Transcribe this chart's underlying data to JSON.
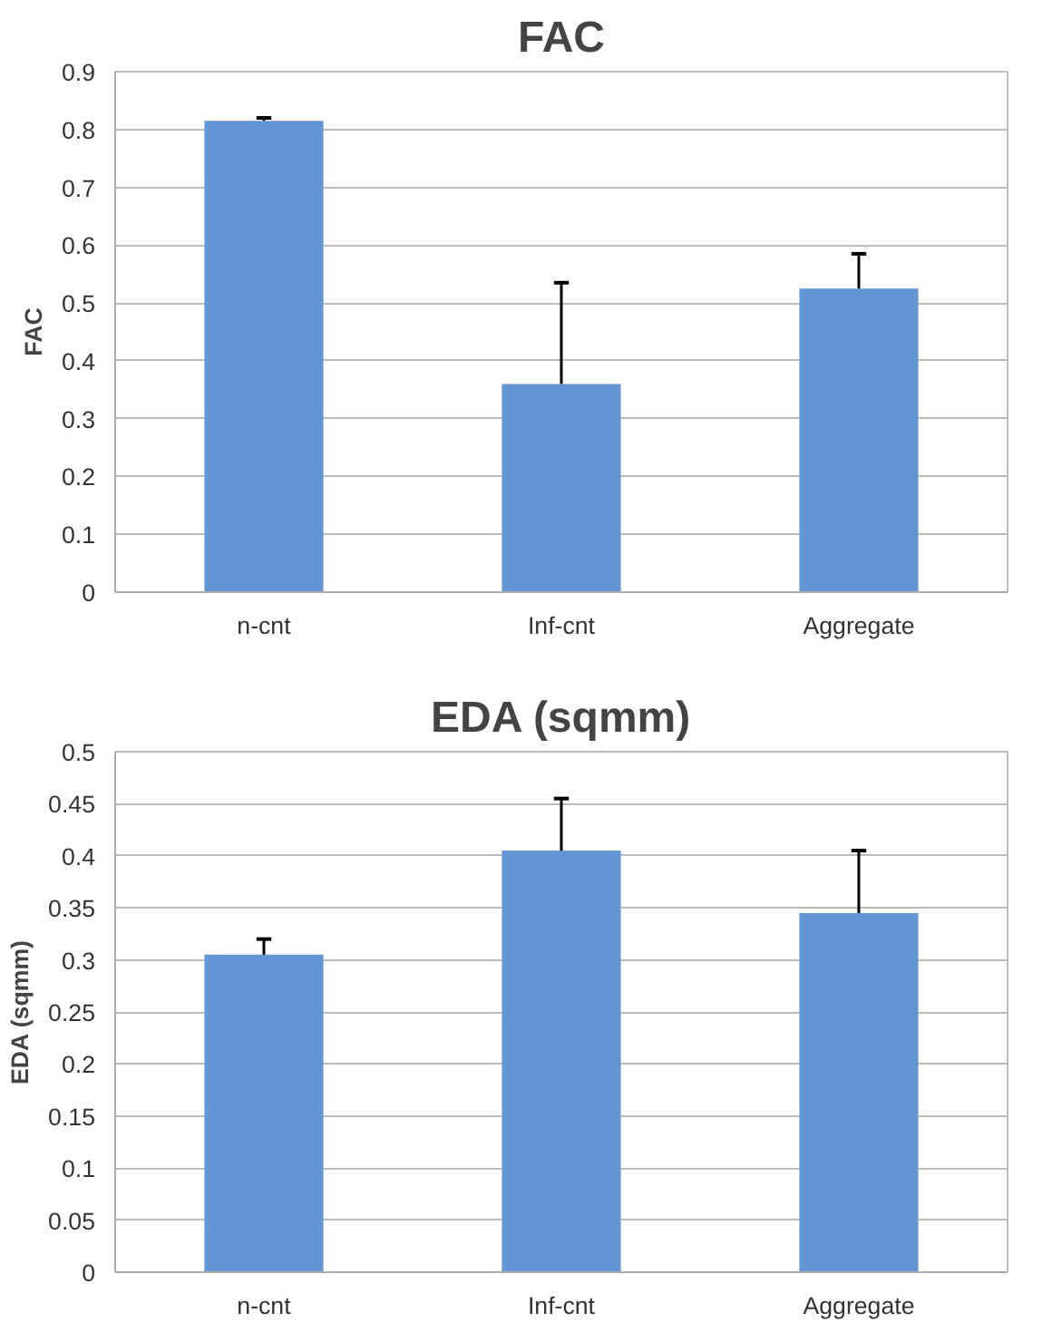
{
  "chart_data": [
    {
      "type": "bar",
      "title": "FAC",
      "ylabel": "FAC",
      "categories": [
        "n-cnt",
        "Inf-cnt",
        "Aggregate"
      ],
      "values": [
        0.815,
        0.36,
        0.525
      ],
      "errors": [
        [
          0.815,
          0.82
        ],
        [
          0.36,
          0.535
        ],
        [
          0.525,
          0.585
        ]
      ],
      "color": "#6395d3",
      "ylim": [
        0,
        0.9
      ],
      "yticks": [
        0,
        0.1,
        0.2,
        0.3,
        0.4,
        0.5,
        0.6,
        0.7,
        0.8,
        0.9
      ],
      "grid": "y"
    },
    {
      "type": "bar",
      "title": "EDA (sqmm)",
      "ylabel": "EDA (sqmm)",
      "categories": [
        "n-cnt",
        "Inf-cnt",
        "Aggregate"
      ],
      "values": [
        0.305,
        0.405,
        0.345
      ],
      "errors": [
        [
          0.305,
          0.32
        ],
        [
          0.405,
          0.455
        ],
        [
          0.345,
          0.405
        ]
      ],
      "color": "#6395d3",
      "ylim": [
        0,
        0.5
      ],
      "yticks": [
        0,
        0.05,
        0.1,
        0.15,
        0.2,
        0.25,
        0.3,
        0.35,
        0.4,
        0.45,
        0.5
      ],
      "grid": "y"
    }
  ]
}
